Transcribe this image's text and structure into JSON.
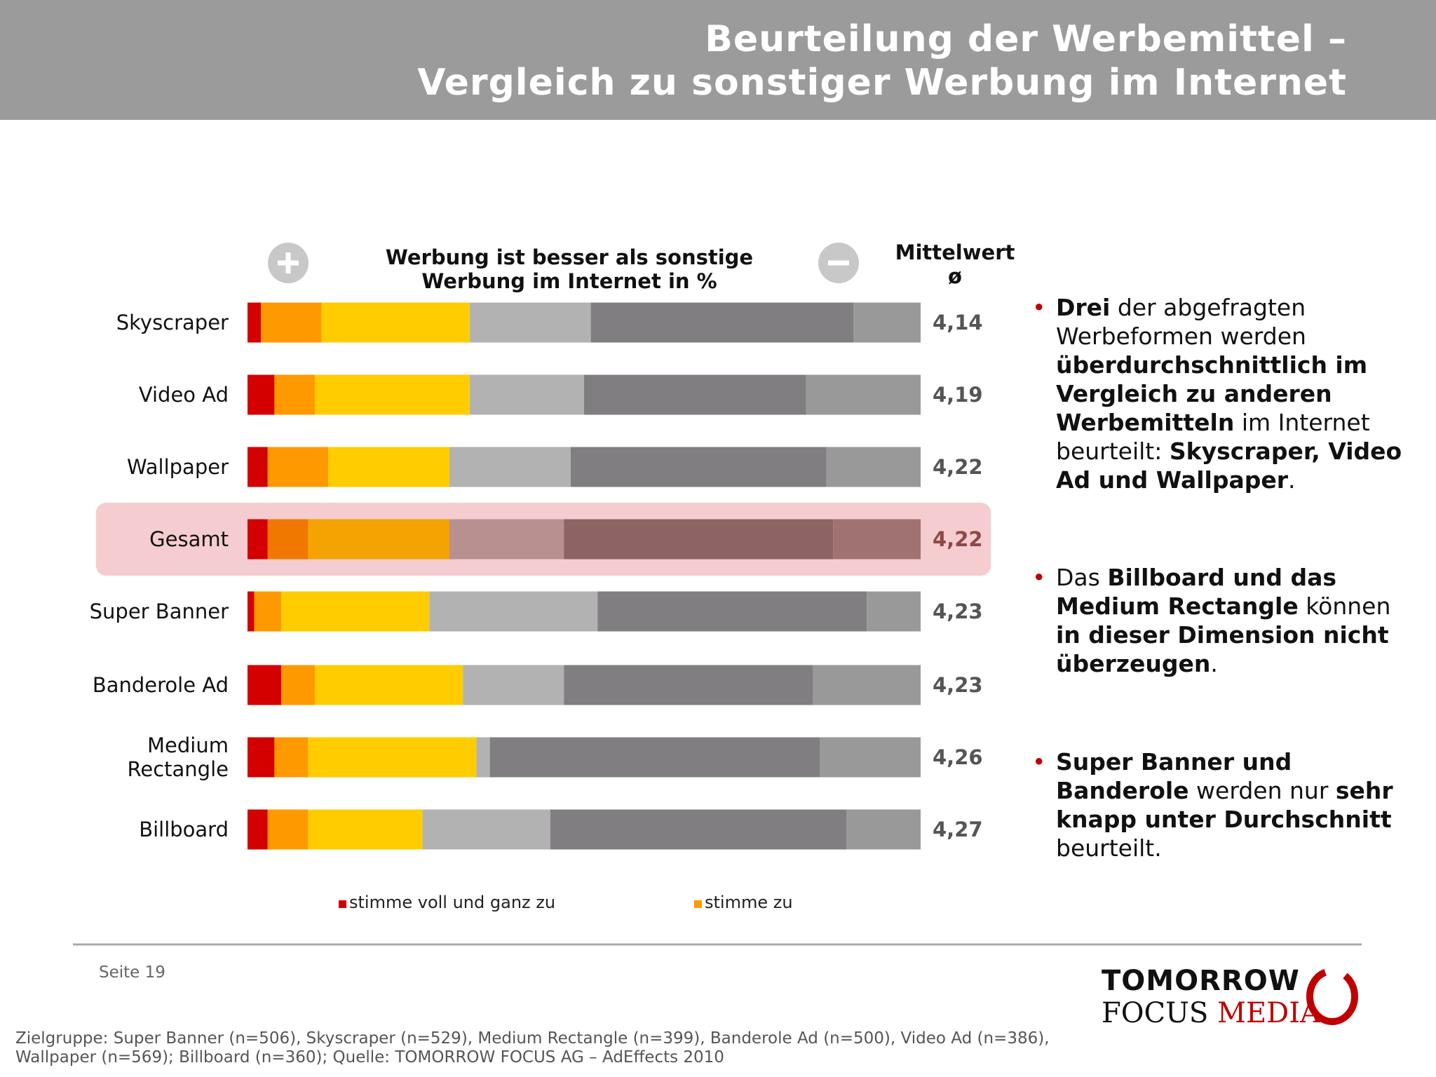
{
  "header": {
    "title_line1": "Beurteilung der Werbemittel –",
    "title_line2": "Vergleich zu sonstiger Werbung im Internet"
  },
  "chart_data": {
    "type": "stacked-bar-horizontal",
    "title_line1": "Werbung ist besser als sonstige",
    "title_line2": "Werbung im Internet in %",
    "mean_header_line1": "Mittelwert",
    "mean_header_line2": "ø",
    "categories": [
      "Skyscraper",
      "Video Ad",
      "Wallpaper",
      "Gesamt",
      "Super Banner",
      "Banderole Ad",
      "Medium Rectangle",
      "Billboard"
    ],
    "xlim": [
      0,
      100
    ],
    "series": [
      {
        "name": "stimme voll und ganz zu",
        "color": "#d40000",
        "values": [
          2,
          4,
          3,
          3,
          1,
          5,
          4,
          3
        ]
      },
      {
        "name": "stimme zu",
        "color": "#ff9900",
        "values": [
          9,
          6,
          9,
          6,
          4,
          5,
          5,
          6
        ]
      },
      {
        "color": "#ffcc00",
        "values": [
          22,
          23,
          18,
          21,
          22,
          22,
          25,
          17
        ]
      },
      {
        "color": "#b3b2b3",
        "values": [
          18,
          17,
          18,
          17,
          25,
          15,
          2,
          19
        ]
      },
      {
        "color": "#807e80",
        "values": [
          39,
          33,
          38,
          40,
          40,
          37,
          49,
          44
        ]
      },
      {
        "color": "#9a999a",
        "values": [
          10,
          17,
          14,
          13,
          8,
          16,
          15,
          11
        ]
      }
    ],
    "highlight_index": 3,
    "highlight_colors": [
      "#d40000",
      "#f07800",
      "#f4a300",
      "#b99090",
      "#8e6363",
      "#a07272"
    ],
    "means": {
      "values": [
        4.14,
        4.19,
        4.22,
        4.22,
        4.23,
        4.23,
        4.26,
        4.27
      ],
      "value_labels": [
        "4,14",
        "4,19",
        "4,22",
        "4,22",
        "4,23",
        "4,23",
        "4,26",
        "4,27"
      ]
    }
  },
  "bullets": [
    [
      {
        "text": "Drei",
        "bold": true
      },
      {
        "text": " der abgefragten Werbeformen werden "
      },
      {
        "text": "überdurchschnittlich im Vergleich zu anderen Werbemitteln",
        "bold": true
      },
      {
        "text": " im Internet beurteilt: "
      },
      {
        "text": "Skyscraper, Video Ad und Wallpaper",
        "bold": true
      },
      {
        "text": "."
      }
    ],
    [
      {
        "text": "Das "
      },
      {
        "text": "Billboard und das Medium Rectangle",
        "bold": true
      },
      {
        "text": " können "
      },
      {
        "text": "in dieser Dimension nicht überzeugen",
        "bold": true
      },
      {
        "text": "."
      }
    ],
    [
      {
        "text": "Super Banner und Banderole",
        "bold": true
      },
      {
        "text": " werden nur "
      },
      {
        "text": "sehr knapp unter Durchschnitt",
        "bold": true
      },
      {
        "text": " beurteilt."
      }
    ]
  ],
  "footer": {
    "page": "Seite 19",
    "logo_line1": "TOMORROW",
    "logo_focus": "FOCUS",
    "logo_media": "MEDIA",
    "note_line1": "Zielgruppe: Super Banner (n=506), Skyscraper (n=529), Medium Rectangle (n=399), Banderole Ad (n=500), Video Ad (n=386),",
    "note_line2": "Wallpaper (n=569); Billboard (n=360); Quelle: TOMORROW FOCUS AG – AdEffects 2010"
  }
}
